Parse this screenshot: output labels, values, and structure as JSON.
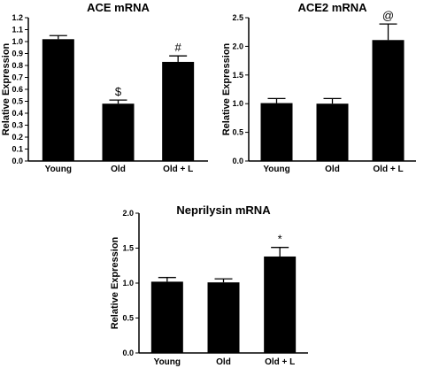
{
  "chart_data": [
    {
      "type": "bar",
      "title": "ACE mRNA",
      "ylabel": "Relative Expression",
      "xlabel": "",
      "categories": [
        "Young",
        "Old",
        "Old + L"
      ],
      "values": [
        1.02,
        0.48,
        0.83
      ],
      "errors": [
        0.03,
        0.03,
        0.05
      ],
      "annotations": [
        "",
        "$",
        "#"
      ],
      "ylim": [
        0,
        1.2
      ],
      "yticks": [
        "0.0",
        "0.1",
        "0.2",
        "0.3",
        "0.4",
        "0.5",
        "0.6",
        "0.7",
        "0.8",
        "0.9",
        "1.0",
        "1.1",
        "1.2"
      ],
      "grid": false
    },
    {
      "type": "bar",
      "title": "ACE2 mRNA",
      "ylabel": "Relative Expression",
      "xlabel": "",
      "categories": [
        "Young",
        "Old",
        "Old + L"
      ],
      "values": [
        1.01,
        1.0,
        2.11
      ],
      "errors": [
        0.08,
        0.09,
        0.28
      ],
      "annotations": [
        "",
        "",
        "@"
      ],
      "ylim": [
        0,
        2.5
      ],
      "yticks": [
        "0.0",
        "0.5",
        "1.0",
        "1.5",
        "2.0",
        "2.5"
      ],
      "grid": false
    },
    {
      "type": "bar",
      "title": "Neprilysin mRNA",
      "ylabel": "Relative Expression",
      "xlabel": "",
      "categories": [
        "Young",
        "Old",
        "Old + L"
      ],
      "values": [
        1.02,
        1.01,
        1.38
      ],
      "errors": [
        0.06,
        0.05,
        0.13
      ],
      "annotations": [
        "",
        "",
        "*"
      ],
      "ylim": [
        0,
        2.0
      ],
      "yticks": [
        "0.0",
        "0.5",
        "1.0",
        "1.5",
        "2.0"
      ],
      "grid": false
    }
  ]
}
